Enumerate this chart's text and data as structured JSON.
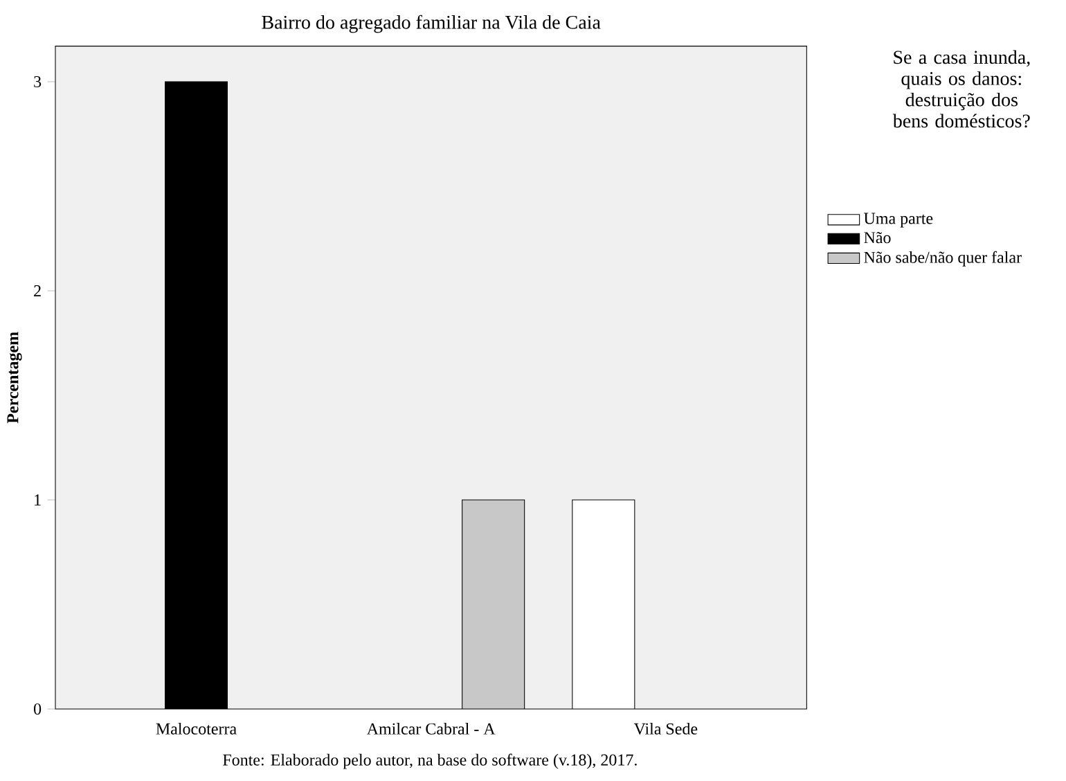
{
  "chart_data": {
    "type": "bar",
    "title": "Bairro do agregado familiar na Vila de Caia",
    "ylabel": "Percentagem",
    "legend_title": "Se a casa inunda, quais os danos: destruição dos bens domésticos?",
    "categories": [
      "Malocoterra",
      "Amilcar Cabral - A",
      "Vila Sede"
    ],
    "series": [
      {
        "name": "Uma parte",
        "color": "#ffffff",
        "values": [
          null,
          null,
          1
        ]
      },
      {
        "name": "Não",
        "color": "#000000",
        "values": [
          3,
          null,
          null
        ]
      },
      {
        "name": "Não sabe/não quer falar",
        "color": "#c8c8c8",
        "values": [
          null,
          1,
          null
        ]
      }
    ],
    "ylim": [
      0,
      3.17
    ],
    "yticks": [
      0,
      1,
      2,
      3
    ],
    "grid": false,
    "legend": "right",
    "annotations": [
      "Fonte: Elaborado pelo autor, na base do software (v.18), 2017."
    ]
  }
}
